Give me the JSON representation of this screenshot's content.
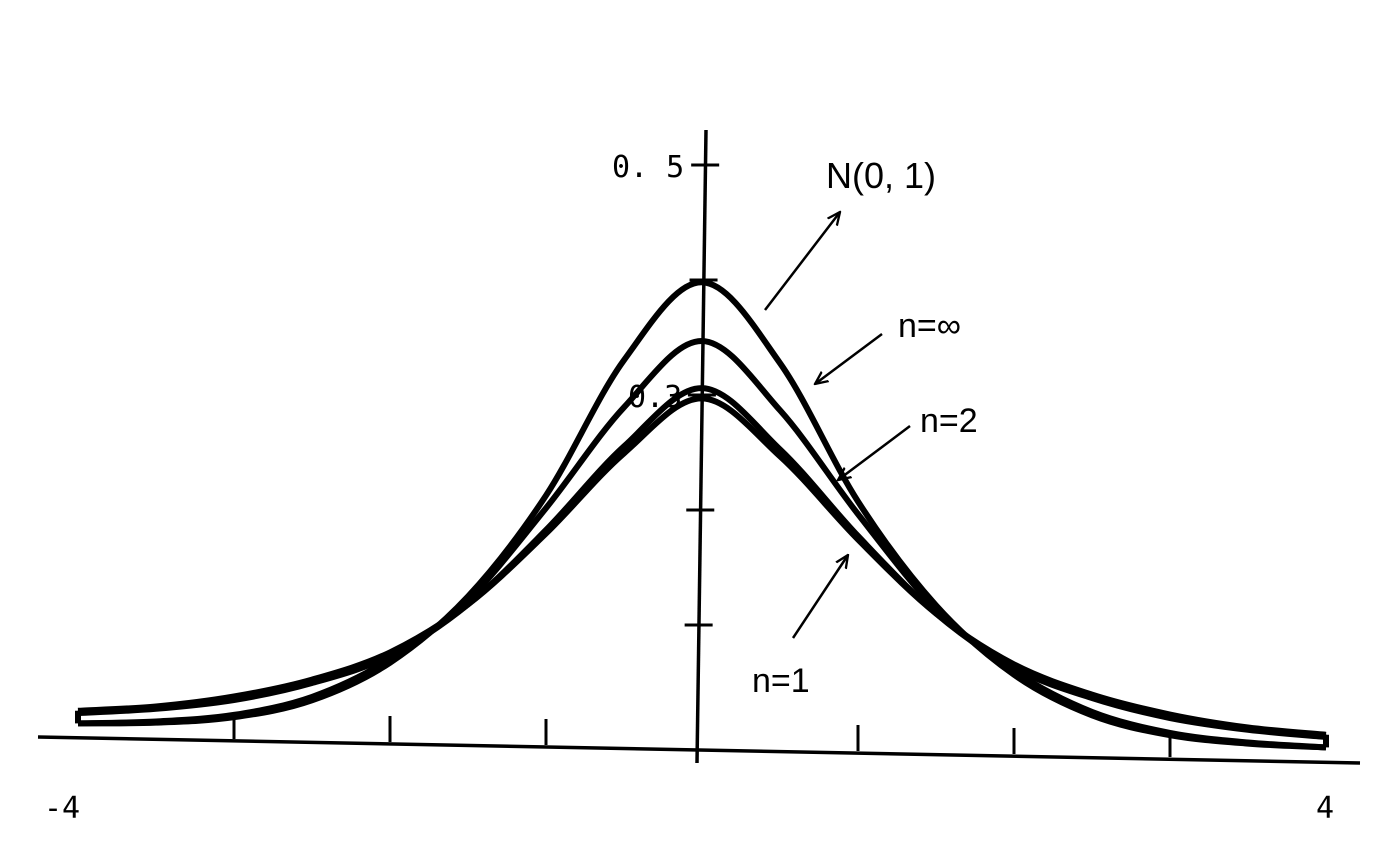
{
  "chart_data": {
    "type": "line",
    "title": "",
    "xlabel": "",
    "ylabel": "",
    "xlim": [
      -4,
      4
    ],
    "ylim": [
      0,
      0.5
    ],
    "x_tick_labels": [
      {
        "value": -4,
        "text": "-4"
      },
      {
        "value": 4,
        "text": "4"
      }
    ],
    "y_tick_labels": [
      {
        "value": 0.5,
        "text": "0. 5"
      },
      {
        "value": 0.3,
        "text": "0.3"
      }
    ],
    "grid": false,
    "legend": "none",
    "series": [
      {
        "name": "N(0, 1)",
        "x": [
          -4,
          -3.5,
          -3,
          -2.5,
          -2,
          -1.5,
          -1,
          -0.5,
          0,
          0.5,
          1,
          1.5,
          2,
          2.5,
          3,
          3.5,
          4
        ],
        "y": [
          0.004,
          0.006,
          0.012,
          0.028,
          0.062,
          0.121,
          0.21,
          0.329,
          0.398,
          0.329,
          0.21,
          0.121,
          0.062,
          0.028,
          0.012,
          0.006,
          0.004
        ]
      },
      {
        "name": "n=∞",
        "x": [
          -4,
          -3.5,
          -3,
          -2.5,
          -2,
          -1.5,
          -1,
          -0.5,
          0,
          0.5,
          1,
          1.5,
          2,
          2.5,
          3,
          3.5,
          4
        ],
        "y": [
          0.004,
          0.007,
          0.014,
          0.031,
          0.065,
          0.118,
          0.199,
          0.288,
          0.347,
          0.288,
          0.199,
          0.118,
          0.065,
          0.031,
          0.014,
          0.007,
          0.004
        ]
      },
      {
        "name": "n=2",
        "x": [
          -4,
          -3.5,
          -3,
          -2.5,
          -2,
          -1.5,
          -1,
          -0.5,
          0,
          0.5,
          1,
          1.5,
          2,
          2.5,
          3,
          3.5,
          4
        ],
        "y": [
          0.013,
          0.018,
          0.027,
          0.043,
          0.068,
          0.114,
          0.18,
          0.254,
          0.306,
          0.254,
          0.18,
          0.114,
          0.068,
          0.043,
          0.027,
          0.018,
          0.013
        ]
      },
      {
        "name": "n=1",
        "x": [
          -4,
          -3.5,
          -3,
          -2.5,
          -2,
          -1.5,
          -1,
          -0.5,
          0,
          0.5,
          1,
          1.5,
          2,
          2.5,
          3,
          3.5,
          4
        ],
        "y": [
          0.015,
          0.02,
          0.03,
          0.046,
          0.071,
          0.114,
          0.177,
          0.248,
          0.297,
          0.248,
          0.177,
          0.114,
          0.071,
          0.046,
          0.03,
          0.02,
          0.015
        ]
      }
    ],
    "annotations": [
      {
        "series": "N(0, 1)",
        "text": "N(0, 1)"
      },
      {
        "series": "n=∞",
        "text": "n=∞"
      },
      {
        "series": "n=2",
        "text": "n=2"
      },
      {
        "series": "n=1",
        "text": "n=1"
      }
    ]
  }
}
